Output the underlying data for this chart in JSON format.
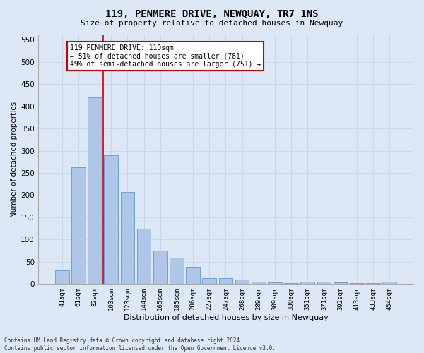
{
  "title": "119, PENMERE DRIVE, NEWQUAY, TR7 1NS",
  "subtitle": "Size of property relative to detached houses in Newquay",
  "xlabel": "Distribution of detached houses by size in Newquay",
  "ylabel": "Number of detached properties",
  "footer_line1": "Contains HM Land Registry data © Crown copyright and database right 2024.",
  "footer_line2": "Contains public sector information licensed under the Open Government Licence v3.0.",
  "categories": [
    "41sqm",
    "61sqm",
    "82sqm",
    "103sqm",
    "123sqm",
    "144sqm",
    "165sqm",
    "185sqm",
    "206sqm",
    "227sqm",
    "247sqm",
    "268sqm",
    "289sqm",
    "309sqm",
    "330sqm",
    "351sqm",
    "371sqm",
    "392sqm",
    "413sqm",
    "433sqm",
    "454sqm"
  ],
  "values": [
    30,
    263,
    420,
    290,
    207,
    125,
    76,
    59,
    38,
    14,
    14,
    10,
    6,
    4,
    2,
    6,
    6,
    4,
    2,
    2,
    5
  ],
  "bar_color": "#aec6e8",
  "bar_edgecolor": "#5b9bd5",
  "grid_color": "#c8d8ea",
  "background_color": "#dce8f5",
  "annotation_box_text": "119 PENMERE DRIVE: 110sqm\n← 51% of detached houses are smaller (781)\n49% of semi-detached houses are larger (751) →",
  "annotation_box_color": "#ffffff",
  "annotation_box_edgecolor": "#cc0000",
  "marker_line_color": "#cc0000",
  "ylim": [
    0,
    560
  ],
  "yticks": [
    0,
    50,
    100,
    150,
    200,
    250,
    300,
    350,
    400,
    450,
    500,
    550
  ]
}
